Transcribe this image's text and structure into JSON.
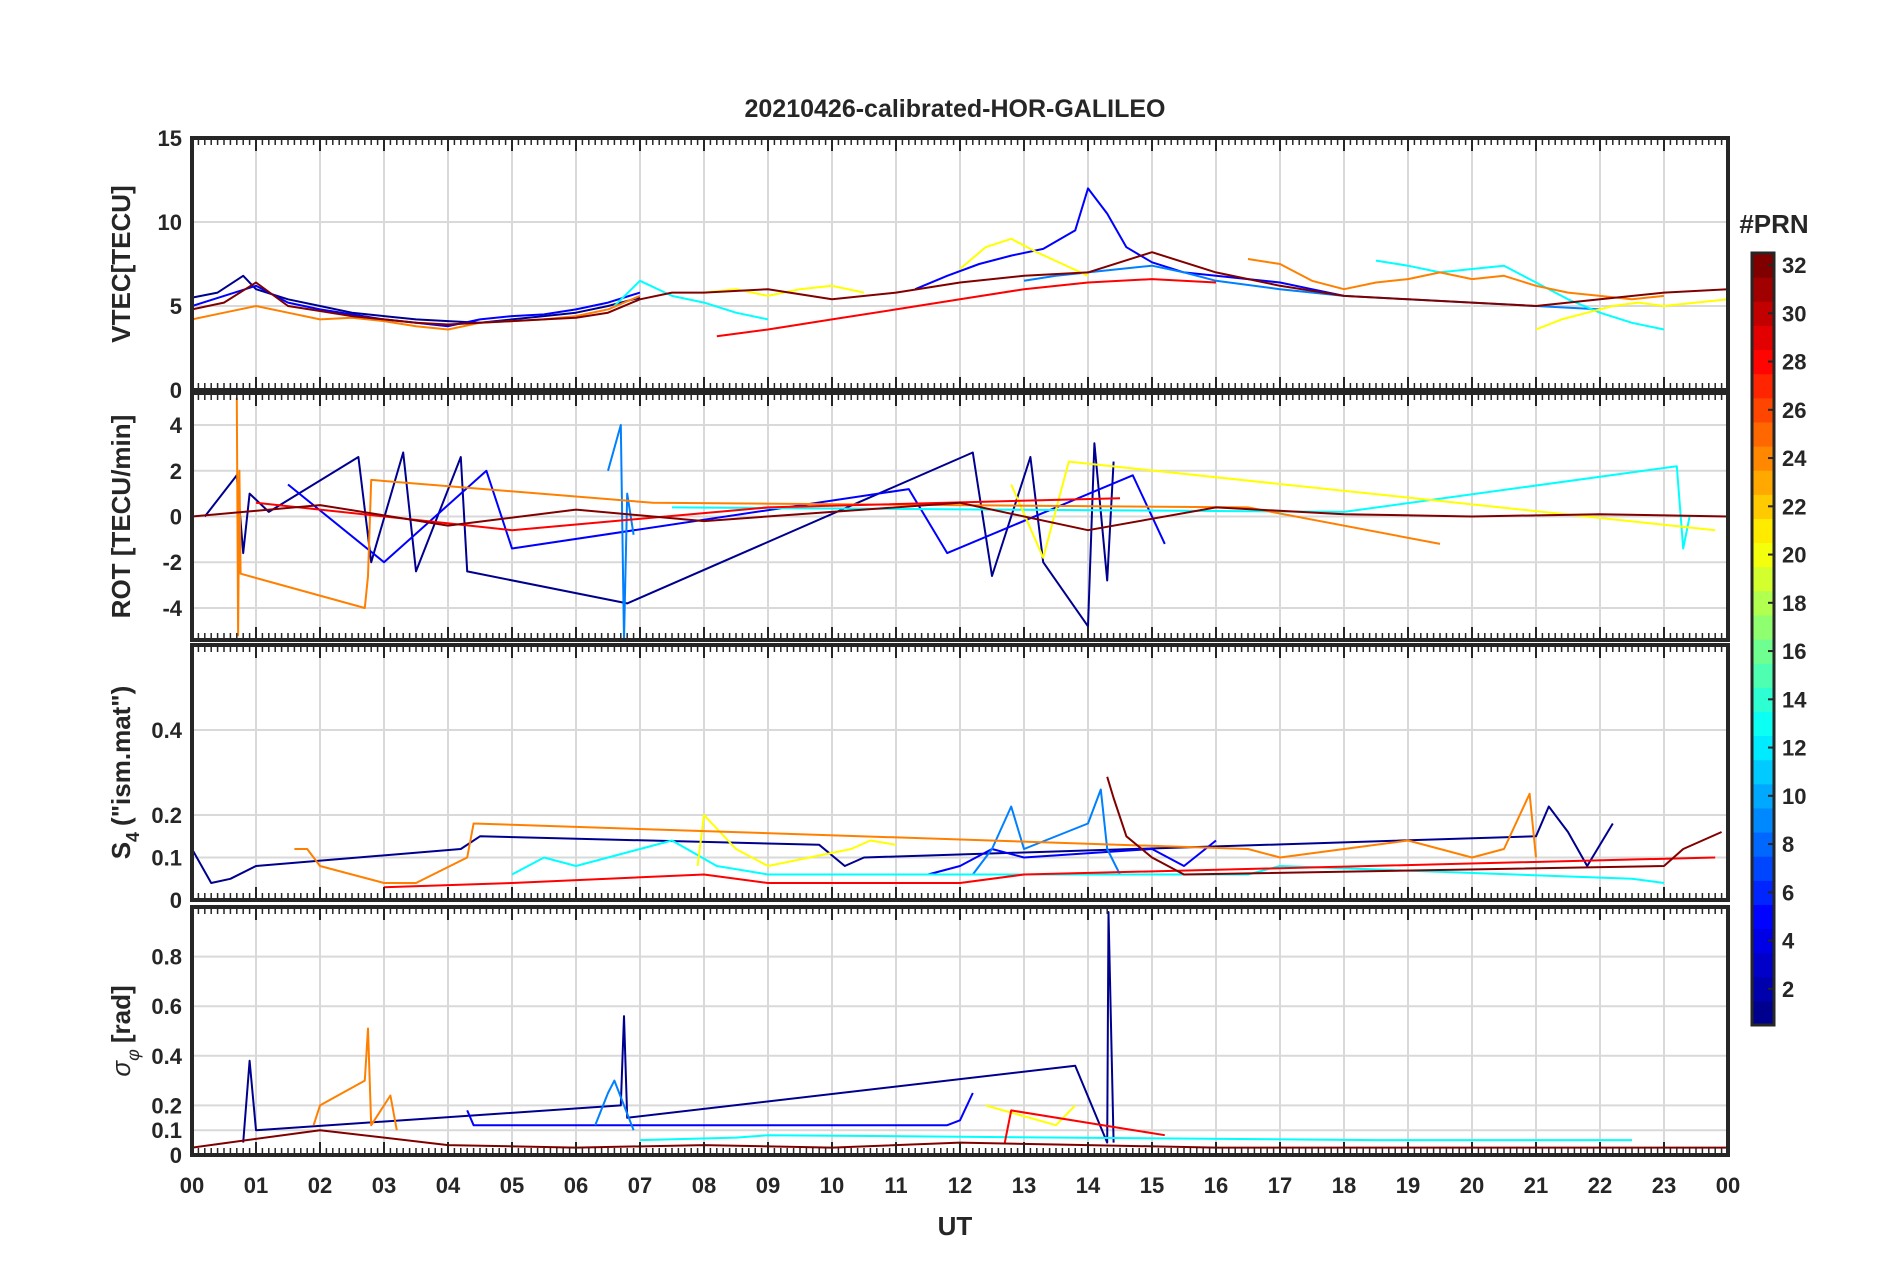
{
  "figure": {
    "title": "20210426-calibrated-HOR-GALILEO",
    "xlabel": "UT",
    "x_ticks": [
      "00",
      "01",
      "02",
      "03",
      "04",
      "05",
      "06",
      "07",
      "08",
      "09",
      "10",
      "11",
      "12",
      "13",
      "14",
      "15",
      "16",
      "17",
      "18",
      "19",
      "20",
      "21",
      "22",
      "23",
      "00"
    ],
    "colorbar": {
      "title": "#PRN",
      "range": [
        1,
        32
      ],
      "ticks": [
        2,
        4,
        6,
        8,
        10,
        12,
        14,
        16,
        18,
        20,
        22,
        24,
        26,
        28,
        30,
        32
      ],
      "colormap": "jet",
      "colors": [
        "#00008f",
        "#0000ff",
        "#0080ff",
        "#00ffff",
        "#80ff80",
        "#ffff00",
        "#ff8000",
        "#ff0000",
        "#800000"
      ]
    },
    "panels": [
      {
        "ylabel": "VTEC[TECU]",
        "ylim": [
          0,
          15
        ],
        "yticks": [
          "0",
          "5",
          "10",
          "15"
        ]
      },
      {
        "ylabel": "ROT [TECU/min]",
        "ylim": [
          -5.4,
          5.4
        ],
        "yticks": [
          "-4",
          "-2",
          "0",
          "2",
          "4"
        ]
      },
      {
        "ylabel_main": "S",
        "ylabel_sub": "4",
        "ylabel_rest": "(\"ism.mat\")",
        "ylim": [
          0,
          0.6
        ],
        "yticks": [
          "0",
          "0.1",
          "0.2",
          "0.4"
        ]
      },
      {
        "ylabel_main": "σ",
        "ylabel_sub": "φ",
        "ylabel_rest": "[rad]",
        "ylim": [
          0,
          1
        ],
        "yticks": [
          "0",
          "0.1",
          "0.2",
          "0.4",
          "0.6",
          "0.8"
        ]
      }
    ]
  },
  "chart_data": [
    {
      "type": "line",
      "ylabel": "VTEC[TECU]",
      "xlabel": "UT",
      "xlim": [
        0,
        24
      ],
      "ylim": [
        0,
        15
      ],
      "grid": true,
      "series": [
        {
          "color": "#00008f",
          "x": [
            0,
            0.4,
            0.8,
            1.0,
            1.5,
            2,
            2.5,
            3,
            3.5,
            4,
            4.5,
            5,
            5.5,
            6,
            6.5,
            7
          ],
          "y": [
            5.5,
            5.8,
            6.8,
            6.0,
            5.4,
            5.0,
            4.6,
            4.4,
            4.2,
            4.1,
            4.0,
            4.2,
            4.4,
            4.6,
            5.0,
            5.5
          ]
        },
        {
          "color": "#0000ff",
          "x": [
            0,
            0.5,
            1,
            1.5,
            2,
            2.5,
            3,
            3.5,
            4,
            4.5,
            5,
            5.5,
            6,
            6.5,
            7
          ],
          "y": [
            5.0,
            5.6,
            6.2,
            5.2,
            4.8,
            4.5,
            4.2,
            4.0,
            3.8,
            4.2,
            4.4,
            4.5,
            4.8,
            5.2,
            5.8
          ]
        },
        {
          "color": "#0000ff",
          "x": [
            11.3,
            11.8,
            12.3,
            12.8,
            13.3,
            13.8,
            14.0,
            14.3,
            14.6,
            15.0,
            15.5,
            16,
            16.5,
            17,
            17.5,
            18
          ],
          "y": [
            6.0,
            6.8,
            7.5,
            8.0,
            8.4,
            9.5,
            12.0,
            10.5,
            8.5,
            7.6,
            7.0,
            6.8,
            6.6,
            6.4,
            6.0,
            5.6
          ]
        },
        {
          "color": "#0080ff",
          "x": [
            13.0,
            13.5,
            14,
            14.5,
            15,
            15.5,
            16,
            17,
            18,
            19,
            20,
            21,
            22
          ],
          "y": [
            6.5,
            6.8,
            7.0,
            7.2,
            7.4,
            7.0,
            6.5,
            6.0,
            5.6,
            5.4,
            5.2,
            5.0,
            4.8
          ]
        },
        {
          "color": "#00ffff",
          "x": [
            6.6,
            7.0,
            7.5,
            8.0,
            8.5,
            9.0
          ],
          "y": [
            5.0,
            6.5,
            5.6,
            5.2,
            4.6,
            4.2
          ]
        },
        {
          "color": "#00ffff",
          "x": [
            18.5,
            19,
            19.5,
            20,
            20.5,
            21,
            21.5,
            22,
            22.5,
            23
          ],
          "y": [
            7.7,
            7.4,
            7.0,
            7.2,
            7.4,
            6.4,
            5.4,
            4.6,
            4.0,
            3.6
          ]
        },
        {
          "color": "#ffff00",
          "x": [
            8.0,
            8.5,
            9.0,
            9.5,
            10.0,
            10.5
          ],
          "y": [
            5.8,
            6.0,
            5.6,
            6.0,
            6.2,
            5.8
          ]
        },
        {
          "color": "#ffff00",
          "x": [
            12.0,
            12.4,
            12.8,
            13.2,
            13.6,
            14.0
          ],
          "y": [
            7.2,
            8.5,
            9.0,
            8.2,
            7.5,
            6.8
          ]
        },
        {
          "color": "#ffff00",
          "x": [
            21.0,
            21.4,
            21.8,
            22.2,
            22.6,
            23.0,
            23.5,
            24
          ],
          "y": [
            3.6,
            4.2,
            4.6,
            5.0,
            5.2,
            5.0,
            5.2,
            5.4
          ]
        },
        {
          "color": "#ff8000",
          "x": [
            0,
            0.5,
            1.0,
            1.5,
            2,
            2.5,
            3,
            3.5,
            4,
            4.5,
            5,
            5.5,
            6,
            6.5,
            7.0
          ],
          "y": [
            4.2,
            4.6,
            5.0,
            4.6,
            4.2,
            4.3,
            4.1,
            3.8,
            3.6,
            4.0,
            4.1,
            4.2,
            4.4,
            4.8,
            5.6
          ]
        },
        {
          "color": "#ff8000",
          "x": [
            16.5,
            17,
            17.5,
            18,
            18.5,
            19,
            19.5,
            20,
            20.5,
            21,
            21.5,
            22,
            22.5,
            23
          ],
          "y": [
            7.8,
            7.5,
            6.5,
            6.0,
            6.4,
            6.6,
            7.0,
            6.6,
            6.8,
            6.2,
            5.8,
            5.6,
            5.4,
            5.6
          ]
        },
        {
          "color": "#ff0000",
          "x": [
            8.2,
            9,
            10,
            11,
            12,
            13,
            14,
            15,
            16
          ],
          "y": [
            3.2,
            3.6,
            4.2,
            4.8,
            5.4,
            6.0,
            6.4,
            6.6,
            6.4
          ]
        },
        {
          "color": "#800000",
          "x": [
            0,
            0.5,
            1.0,
            1.5,
            2,
            2.5,
            3,
            3.5,
            4,
            4.5,
            5,
            5.5,
            6,
            6.5,
            7.0,
            7.5,
            8,
            9,
            10,
            11,
            12,
            13,
            14,
            15,
            16,
            17,
            18,
            19,
            20,
            21,
            22,
            23,
            24
          ],
          "y": [
            4.8,
            5.2,
            6.4,
            5.0,
            4.7,
            4.4,
            4.2,
            4.0,
            3.9,
            4.0,
            4.1,
            4.2,
            4.3,
            4.6,
            5.4,
            5.8,
            5.8,
            6.0,
            5.4,
            5.8,
            6.4,
            6.8,
            7.0,
            8.2,
            7.0,
            6.2,
            5.6,
            5.4,
            5.2,
            5.0,
            5.4,
            5.8,
            6.0
          ]
        }
      ]
    },
    {
      "type": "line",
      "ylabel": "ROT [TECU/min]",
      "xlabel": "UT",
      "xlim": [
        0,
        24
      ],
      "ylim": [
        -5.4,
        5.4
      ],
      "grid": true,
      "series": [
        {
          "color": "#00008f",
          "x": [
            0.2,
            0.7,
            0.8,
            0.9,
            1.2,
            2.6,
            2.8,
            3.3,
            3.5,
            4.2,
            4.3,
            6.8,
            12.2,
            12.5,
            13.1,
            13.3,
            14.0,
            14.1,
            14.3,
            14.4
          ],
          "y": [
            0.0,
            1.8,
            -1.6,
            1.0,
            0.2,
            2.6,
            -2.0,
            2.8,
            -2.4,
            2.6,
            -2.4,
            -3.8,
            2.8,
            -2.6,
            2.6,
            -2.0,
            -4.8,
            3.2,
            -2.8,
            2.4
          ]
        },
        {
          "color": "#0000ff",
          "x": [
            1.5,
            3.0,
            4.6,
            5.0,
            11.2,
            11.8,
            14.7,
            15.2
          ],
          "y": [
            1.4,
            -2.0,
            2.0,
            -1.4,
            1.2,
            -1.6,
            1.8,
            -1.2
          ]
        },
        {
          "color": "#0080ff",
          "x": [
            6.5,
            6.7,
            6.75,
            6.8,
            6.9
          ],
          "y": [
            2.0,
            4.0,
            -5.4,
            1.0,
            -0.8
          ]
        },
        {
          "color": "#00ffff",
          "x": [
            7.5,
            18,
            23.2,
            23.3,
            23.4
          ],
          "y": [
            0.4,
            0.2,
            2.2,
            -1.4,
            0.0
          ]
        },
        {
          "color": "#ffff00",
          "x": [
            12.8,
            13.3,
            13.7,
            23.8
          ],
          "y": [
            1.4,
            -1.8,
            2.4,
            -0.6
          ]
        },
        {
          "color": "#ff8000",
          "x": [
            0.7,
            0.72,
            0.74,
            0.76,
            2.7,
            2.75,
            2.8,
            7.2,
            16.5,
            19.5
          ],
          "y": [
            5.2,
            -5.2,
            2.0,
            -2.5,
            -4.0,
            -2.6,
            1.6,
            0.6,
            0.4,
            -1.2
          ]
        },
        {
          "color": "#ff0000",
          "x": [
            1.0,
            5.0,
            9.0,
            14.5
          ],
          "y": [
            0.6,
            -0.6,
            0.4,
            0.8
          ]
        },
        {
          "color": "#800000",
          "x": [
            0,
            2,
            4,
            6,
            8,
            10,
            12,
            14,
            16,
            18,
            20,
            22,
            24
          ],
          "y": [
            0.0,
            0.5,
            -0.4,
            0.3,
            -0.2,
            0.2,
            0.6,
            -0.6,
            0.4,
            0.1,
            0.0,
            0.1,
            0.0
          ]
        }
      ]
    },
    {
      "type": "line",
      "ylabel": "S4 (\"ism.mat\")",
      "xlabel": "UT",
      "xlim": [
        0,
        24
      ],
      "ylim": [
        0,
        0.6
      ],
      "grid": true,
      "series": [
        {
          "color": "#00008f",
          "x": [
            0,
            0.3,
            0.6,
            1.0,
            4.2,
            4.5,
            9.8,
            10.2,
            10.5,
            21.0,
            21.2,
            21.5,
            21.8,
            22.2
          ],
          "y": [
            0.12,
            0.04,
            0.05,
            0.08,
            0.12,
            0.15,
            0.13,
            0.08,
            0.1,
            0.15,
            0.22,
            0.16,
            0.08,
            0.18
          ]
        },
        {
          "color": "#0000ff",
          "x": [
            11.5,
            12.0,
            12.5,
            13.0,
            15.0,
            15.5,
            16.0
          ],
          "y": [
            0.06,
            0.08,
            0.12,
            0.1,
            0.12,
            0.08,
            0.14
          ]
        },
        {
          "color": "#0080ff",
          "x": [
            12.2,
            12.5,
            12.8,
            13.0,
            14.0,
            14.2,
            14.3,
            14.5
          ],
          "y": [
            0.06,
            0.12,
            0.22,
            0.12,
            0.18,
            0.26,
            0.12,
            0.06
          ]
        },
        {
          "color": "#00ffff",
          "x": [
            5.0,
            5.5,
            6.0,
            6.5,
            7.0,
            7.5,
            8.2,
            9.0,
            16.5,
            17.0,
            22.5,
            23.0
          ],
          "y": [
            0.06,
            0.1,
            0.08,
            0.1,
            0.12,
            0.14,
            0.08,
            0.06,
            0.06,
            0.08,
            0.05,
            0.04
          ]
        },
        {
          "color": "#ffff00",
          "x": [
            7.9,
            8.0,
            8.5,
            9.0,
            10.3,
            10.6,
            11.0
          ],
          "y": [
            0.08,
            0.2,
            0.12,
            0.08,
            0.12,
            0.14,
            0.13
          ]
        },
        {
          "color": "#ff8000",
          "x": [
            1.6,
            1.8,
            2.0,
            2.5,
            3.0,
            3.5,
            4.3,
            4.4,
            16.5,
            17.0,
            18.0,
            19.0,
            20.0,
            20.5,
            20.9,
            21.0
          ],
          "y": [
            0.12,
            0.12,
            0.08,
            0.06,
            0.04,
            0.04,
            0.1,
            0.18,
            0.12,
            0.1,
            0.12,
            0.14,
            0.1,
            0.12,
            0.25,
            0.1
          ]
        },
        {
          "color": "#ff0000",
          "x": [
            3.0,
            5.0,
            8.0,
            9.0,
            12.0,
            13.0,
            23.8
          ],
          "y": [
            0.03,
            0.04,
            0.06,
            0.04,
            0.04,
            0.06,
            0.1
          ]
        },
        {
          "color": "#800000",
          "x": [
            14.3,
            14.4,
            14.6,
            15.0,
            15.5,
            23.0,
            23.3,
            23.6,
            23.9
          ],
          "y": [
            0.29,
            0.24,
            0.15,
            0.1,
            0.06,
            0.08,
            0.12,
            0.14,
            0.16
          ]
        }
      ]
    },
    {
      "type": "line",
      "ylabel": "σφ[rad]",
      "xlabel": "UT",
      "xlim": [
        0,
        24
      ],
      "ylim": [
        0,
        1
      ],
      "grid": true,
      "series": [
        {
          "color": "#00008f",
          "x": [
            0.8,
            0.9,
            1.0,
            6.7,
            6.75,
            6.8,
            13.8,
            14.3,
            14.32,
            14.4
          ],
          "y": [
            0.05,
            0.38,
            0.1,
            0.2,
            0.56,
            0.15,
            0.36,
            0.05,
            0.98,
            0.05
          ]
        },
        {
          "color": "#0000ff",
          "x": [
            4.3,
            4.4,
            11.8,
            12.0,
            12.2
          ],
          "y": [
            0.18,
            0.12,
            0.12,
            0.14,
            0.25
          ]
        },
        {
          "color": "#0080ff",
          "x": [
            6.3,
            6.5,
            6.6,
            6.9
          ],
          "y": [
            0.12,
            0.25,
            0.3,
            0.1
          ]
        },
        {
          "color": "#00ffff",
          "x": [
            7.0,
            8.5,
            9.0,
            18.5,
            19.0,
            22.5
          ],
          "y": [
            0.06,
            0.07,
            0.08,
            0.06,
            0.06,
            0.06
          ]
        },
        {
          "color": "#ffff00",
          "x": [
            12.4,
            13.5,
            13.8
          ],
          "y": [
            0.2,
            0.12,
            0.2
          ]
        },
        {
          "color": "#ff8000",
          "x": [
            1.9,
            2.0,
            2.7,
            2.75,
            2.8,
            3.1,
            3.2
          ],
          "y": [
            0.12,
            0.2,
            0.3,
            0.51,
            0.12,
            0.24,
            0.1
          ]
        },
        {
          "color": "#ff0000",
          "x": [
            12.7,
            12.8,
            15.2
          ],
          "y": [
            0.05,
            0.18,
            0.08
          ]
        },
        {
          "color": "#800000",
          "x": [
            0,
            2,
            4,
            6,
            8,
            10,
            12,
            14,
            16,
            18,
            20,
            22,
            24
          ],
          "y": [
            0.03,
            0.1,
            0.04,
            0.03,
            0.04,
            0.03,
            0.05,
            0.04,
            0.03,
            0.03,
            0.03,
            0.03,
            0.03
          ]
        }
      ]
    }
  ]
}
